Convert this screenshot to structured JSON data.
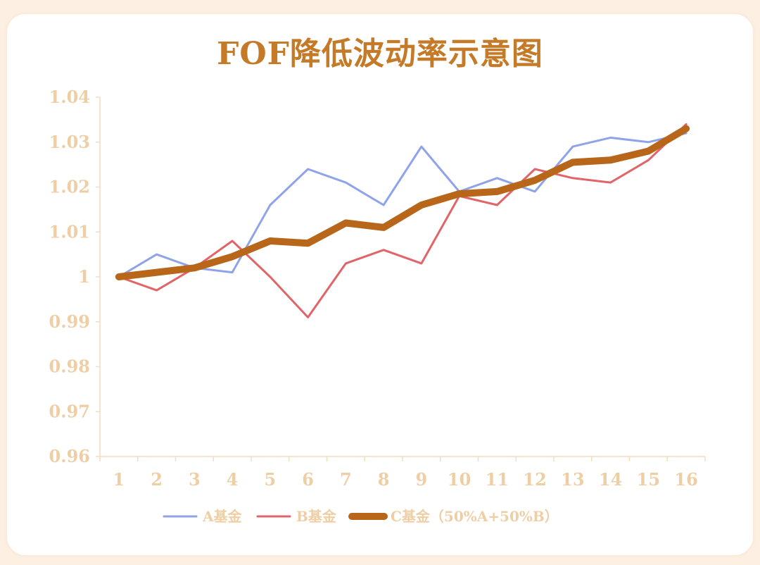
{
  "chart_data": {
    "type": "line",
    "title": "FOF降低波动率示意图",
    "categories": [
      "1",
      "2",
      "3",
      "4",
      "5",
      "6",
      "7",
      "8",
      "9",
      "10",
      "11",
      "12",
      "13",
      "14",
      "15",
      "16"
    ],
    "y_ticks": [
      "0.96",
      "0.97",
      "0.98",
      "0.99",
      "1",
      "1.01",
      "1.02",
      "1.03",
      "1.04"
    ],
    "ylim": [
      0.96,
      1.04
    ],
    "grid": false,
    "legend_position": "bottom",
    "series": [
      {
        "name": "A基金",
        "color": "#8fa3ea",
        "values": [
          1.0,
          1.005,
          1.002,
          1.001,
          1.016,
          1.024,
          1.021,
          1.016,
          1.029,
          1.019,
          1.022,
          1.019,
          1.029,
          1.031,
          1.03,
          1.032
        ]
      },
      {
        "name": "B基金",
        "color": "#e06468",
        "values": [
          1.0,
          0.997,
          1.002,
          1.008,
          1.0,
          0.991,
          1.003,
          1.006,
          1.003,
          1.018,
          1.016,
          1.024,
          1.022,
          1.021,
          1.026,
          1.034
        ]
      },
      {
        "name": "C基金（50%A+50%B）",
        "color": "#b8661a",
        "values": [
          1.0,
          1.001,
          1.002,
          1.0045,
          1.008,
          1.0075,
          1.012,
          1.011,
          1.016,
          1.0185,
          1.019,
          1.0215,
          1.0255,
          1.026,
          1.028,
          1.033
        ]
      }
    ]
  }
}
